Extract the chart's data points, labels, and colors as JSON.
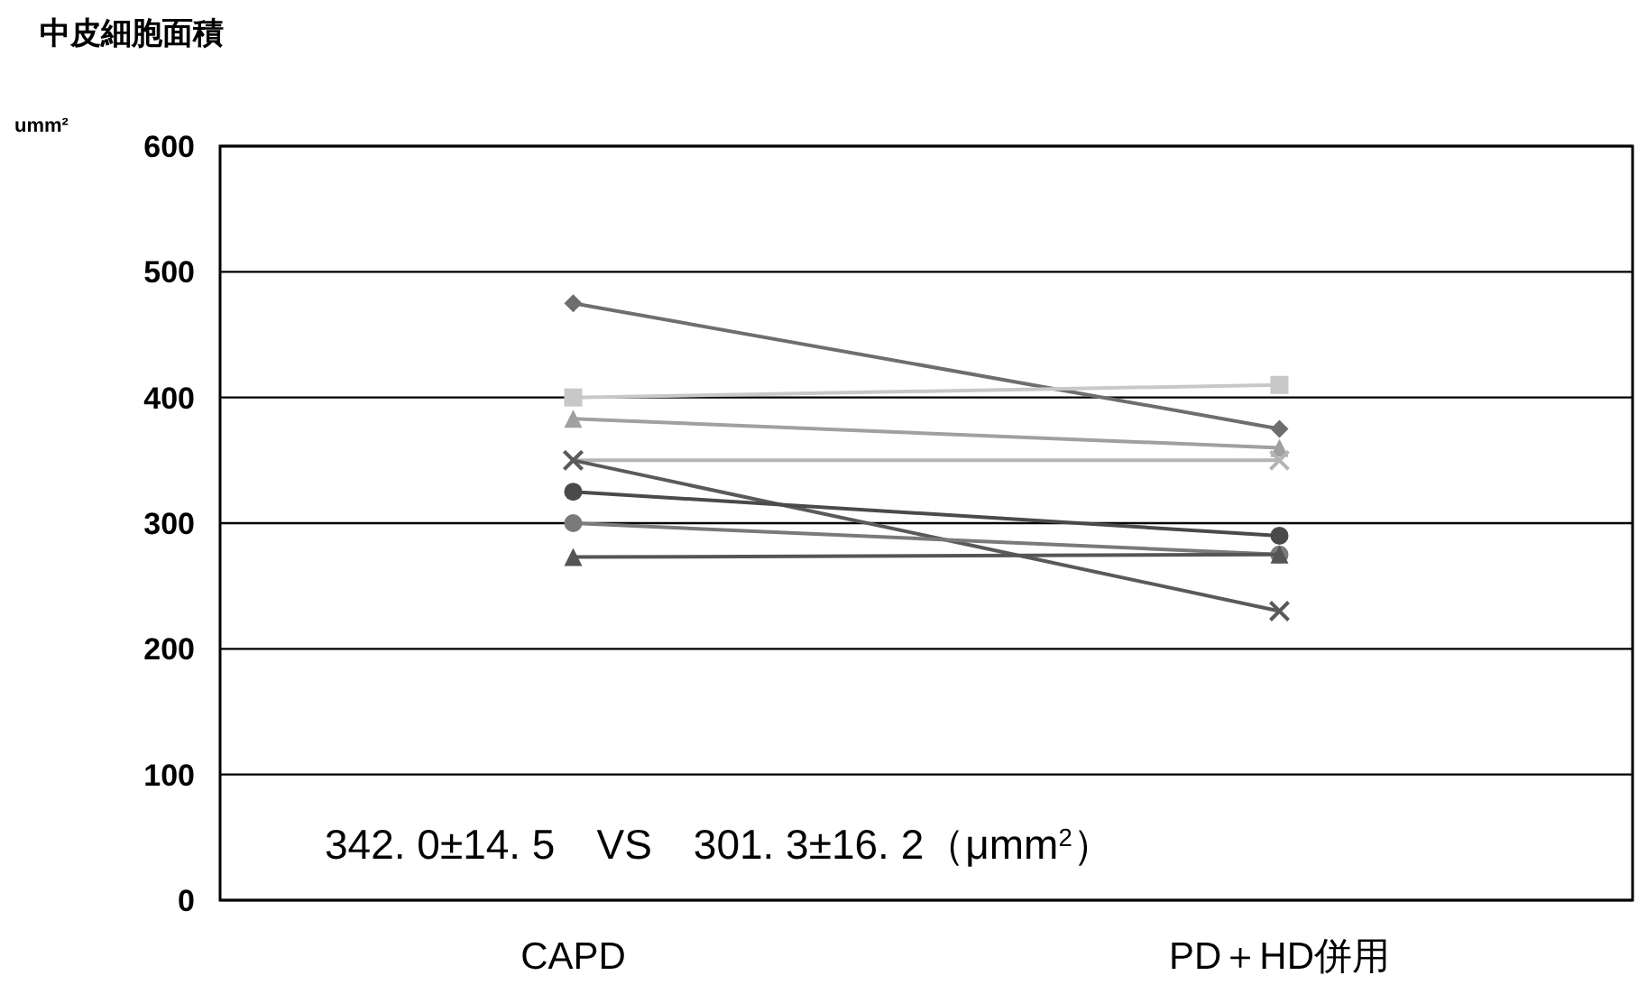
{
  "chart_data": {
    "type": "line",
    "title": "中皮細胞面積",
    "ylabel": "umm²",
    "categories": [
      "CAPD",
      "PD＋HD併用"
    ],
    "series": [
      {
        "color": "#6e6e6e",
        "marker": "diamond",
        "values": [
          475,
          375
        ]
      },
      {
        "color": "#c8c8c8",
        "marker": "square",
        "values": [
          400,
          410
        ]
      },
      {
        "color": "#a0a0a0",
        "marker": "triangle",
        "values": [
          383,
          360
        ]
      },
      {
        "color": "#b4b4b4",
        "marker": "cross",
        "values": [
          350,
          350
        ]
      },
      {
        "color": "#5a5a5a",
        "marker": "cross",
        "values": [
          350,
          230
        ]
      },
      {
        "color": "#4a4a4a",
        "marker": "circle",
        "values": [
          325,
          290
        ]
      },
      {
        "color": "#7a7a7a",
        "marker": "circle",
        "values": [
          300,
          275
        ]
      },
      {
        "color": "#555555",
        "marker": "triangle",
        "values": [
          273,
          275
        ]
      }
    ],
    "ylim": [
      0,
      600
    ],
    "yticks": [
      0,
      100,
      200,
      300,
      400,
      500,
      600
    ],
    "grid": "y",
    "annotations": [
      "342. 0±14. 5　VS　301. 3±16. 2（μmm$^{2}$）"
    ]
  }
}
